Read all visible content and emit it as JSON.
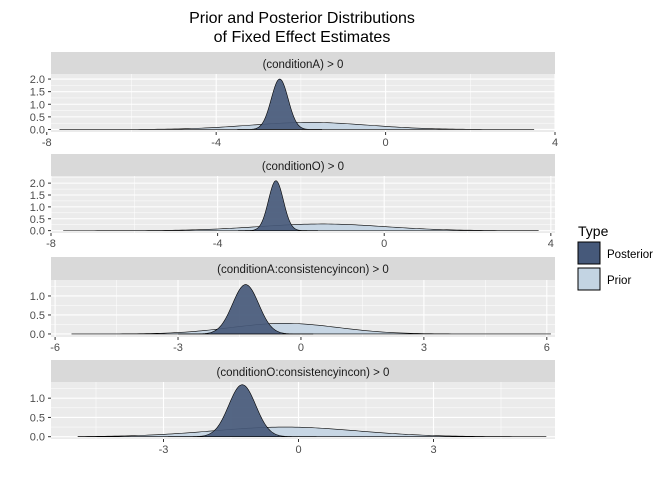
{
  "title_line1": "Prior and Posterior Distributions",
  "title_line2": "of Fixed Effect Estimates",
  "legend": {
    "title": "Type",
    "items": [
      {
        "label": "Posterior",
        "color": "#46597a"
      },
      {
        "label": "Prior",
        "color": "#c3d4e3"
      }
    ]
  },
  "colors": {
    "panel_bg": "#ebebeb",
    "strip_bg": "#d9d9d9",
    "grid_major": "#ffffff",
    "posterior": "#46597a",
    "prior": "#c3d4e3",
    "outline": "#000000"
  },
  "chart_data": [
    {
      "type": "area",
      "strip": "(conditionA) > 0",
      "xlim": [
        -7.9,
        4.0
      ],
      "x_ticks": [
        -8,
        -4,
        0,
        4
      ],
      "x_tick_labels": [
        "-8",
        "-4",
        "0",
        "4"
      ],
      "ylim": [
        -0.1,
        2.2
      ],
      "y_ticks": [
        0.0,
        0.5,
        1.0,
        1.5,
        2.0
      ],
      "y_tick_labels": [
        "0.0",
        "0.5",
        "1.0",
        "1.5",
        "2.0"
      ],
      "series": [
        {
          "name": "Posterior",
          "mean": -2.5,
          "sd": 0.2,
          "peak": 2.0,
          "range": [
            -3.5,
            -1.5
          ]
        },
        {
          "name": "Prior",
          "mean": -1.8,
          "sd": 1.4,
          "peak": 0.28,
          "range": [
            -7.7,
            3.5
          ]
        }
      ]
    },
    {
      "type": "area",
      "strip": "(conditionO) > 0",
      "xlim": [
        -8.0,
        4.1
      ],
      "x_ticks": [
        -8,
        -4,
        0,
        4
      ],
      "x_tick_labels": [
        "-8",
        "-4",
        "0",
        "4"
      ],
      "ylim": [
        -0.1,
        2.3
      ],
      "y_ticks": [
        0.0,
        0.5,
        1.0,
        1.5,
        2.0
      ],
      "y_tick_labels": [
        "0.0",
        "0.5",
        "1.0",
        "1.5",
        "2.0"
      ],
      "series": [
        {
          "name": "Posterior",
          "mean": -2.6,
          "sd": 0.18,
          "peak": 2.1,
          "range": [
            -3.5,
            -1.6
          ]
        },
        {
          "name": "Prior",
          "mean": -1.5,
          "sd": 1.5,
          "peak": 0.28,
          "range": [
            -7.7,
            3.7
          ]
        }
      ]
    },
    {
      "type": "area",
      "strip": "(conditionA:consistencyincon) > 0",
      "xlim": [
        -6.1,
        6.2
      ],
      "x_ticks": [
        -6,
        -3,
        0,
        3,
        6
      ],
      "x_tick_labels": [
        "-6",
        "-3",
        "0",
        "3",
        "6"
      ],
      "ylim": [
        -0.08,
        1.42
      ],
      "y_ticks": [
        0.0,
        0.5,
        1.0
      ],
      "y_tick_labels": [
        "0.0",
        "0.5",
        "1.0"
      ],
      "series": [
        {
          "name": "Posterior",
          "mean": -1.35,
          "sd": 0.32,
          "peak": 1.3,
          "range": [
            -3.0,
            0.3
          ]
        },
        {
          "name": "Prior",
          "mean": -0.4,
          "sd": 1.3,
          "peak": 0.28,
          "range": [
            -5.6,
            6.1
          ]
        }
      ]
    },
    {
      "type": "area",
      "strip": "(conditionO:consistencyincon) > 0",
      "xlim": [
        -5.5,
        5.7
      ],
      "x_ticks": [
        -3,
        0,
        3
      ],
      "x_tick_labels": [
        "-3",
        "0",
        "3"
      ],
      "ylim": [
        -0.06,
        1.42
      ],
      "y_ticks": [
        0.0,
        0.5,
        1.0
      ],
      "y_tick_labels": [
        "0.0",
        "0.5",
        "1.0"
      ],
      "series": [
        {
          "name": "Posterior",
          "mean": -1.25,
          "sd": 0.3,
          "peak": 1.35,
          "range": [
            -2.9,
            0.4
          ]
        },
        {
          "name": "Prior",
          "mean": -0.3,
          "sd": 1.6,
          "peak": 0.25,
          "range": [
            -4.9,
            5.5
          ]
        }
      ]
    }
  ]
}
